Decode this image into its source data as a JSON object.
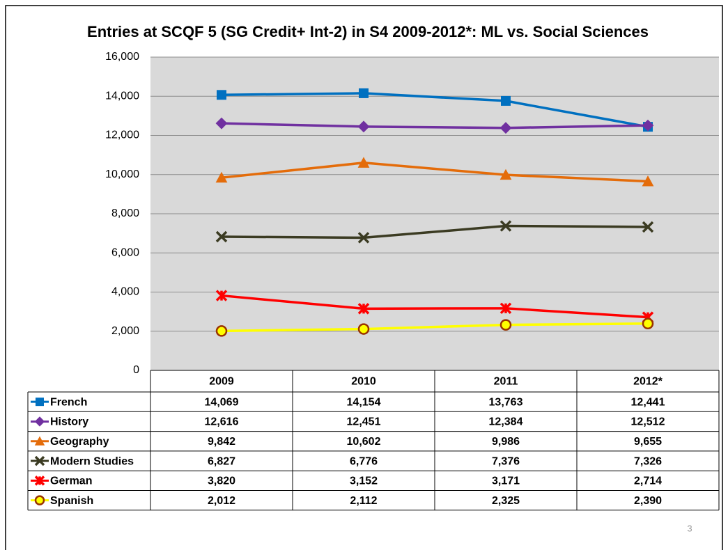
{
  "chart_data": {
    "type": "line",
    "title": "Entries at SCQF 5 (SG Credit+ Int-2) in S4 2009-2012*: ML vs. Social Sciences",
    "categories": [
      "2009",
      "2010",
      "2011",
      "2012*"
    ],
    "ylim": [
      0,
      16000
    ],
    "yticks": [
      0,
      {
        "value": 2000,
        "label": "2,000"
      },
      {
        "value": 4000,
        "label": "4,000"
      },
      {
        "value": 6000,
        "label": "6,000"
      },
      {
        "value": 8000,
        "label": "8,000"
      },
      {
        "value": 10000,
        "label": "10,000"
      },
      {
        "value": 12000,
        "label": "12,000"
      },
      {
        "value": 14000,
        "label": "14,000"
      },
      {
        "value": 16000,
        "label": "16,000"
      }
    ],
    "grid": true,
    "series": [
      {
        "name": "French",
        "color": "#0070c0",
        "marker": "square",
        "values": [
          14069,
          14154,
          13763,
          12441
        ],
        "value_labels": [
          "14,069",
          "14,154",
          "13,763",
          "12,441"
        ]
      },
      {
        "name": "History",
        "color": "#7030a0",
        "marker": "diamond",
        "values": [
          12616,
          12451,
          12384,
          12512
        ],
        "value_labels": [
          "12,616",
          "12,451",
          "12,384",
          "12,512"
        ]
      },
      {
        "name": "Geography",
        "color": "#e46c0a",
        "marker": "triangle",
        "values": [
          9842,
          10602,
          9986,
          9655
        ],
        "value_labels": [
          "9,842",
          "10,602",
          "9,986",
          "9,655"
        ]
      },
      {
        "name": "Modern Studies",
        "color": "#3b3b22",
        "marker": "x",
        "values": [
          6827,
          6776,
          7376,
          7326
        ],
        "value_labels": [
          "6,827",
          "6,776",
          "7,376",
          "7,326"
        ]
      },
      {
        "name": "German",
        "color": "#ff0000",
        "marker": "star",
        "values": [
          3820,
          3152,
          3171,
          2714
        ],
        "value_labels": [
          "3,820",
          "3,152",
          "3,171",
          "2,714"
        ]
      },
      {
        "name": "Spanish",
        "color": "#ffff00",
        "marker": "circle",
        "values": [
          2012,
          2112,
          2325,
          2390
        ],
        "value_labels": [
          "2,012",
          "2,112",
          "2,325",
          "2,390"
        ]
      }
    ]
  },
  "page_number": "3"
}
